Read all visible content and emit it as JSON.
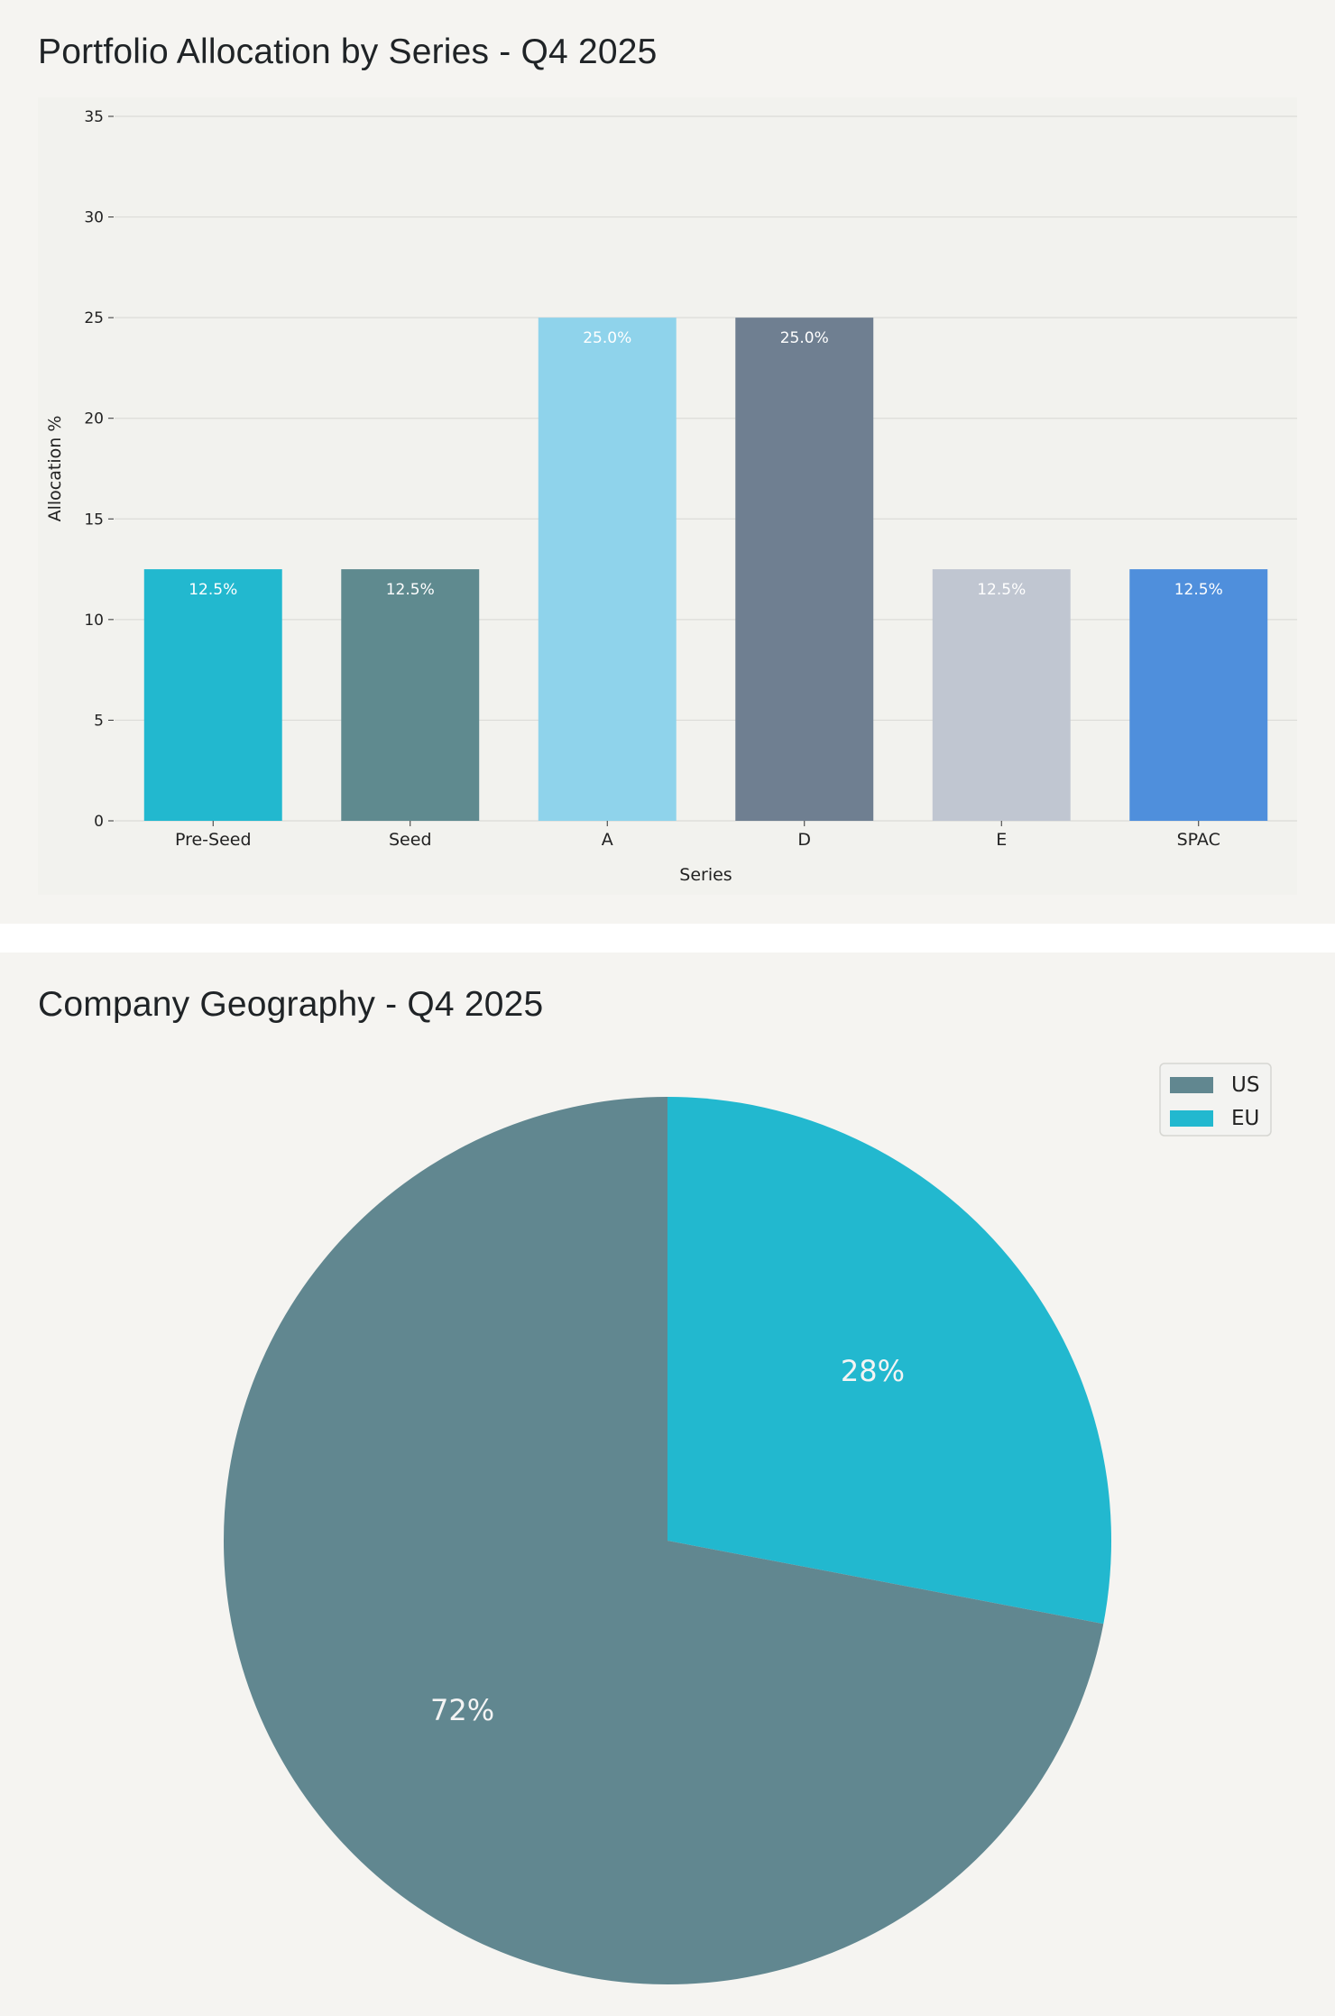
{
  "charts": {
    "bar": {
      "title": "Portfolio Allocation by Series - Q4 2025"
    },
    "pie": {
      "title": "Company Geography - Q4 2025"
    }
  },
  "chart_data": [
    {
      "type": "bar",
      "title": "Portfolio Allocation by Series - Q4 2025",
      "xlabel": "Series",
      "ylabel": "Allocation %",
      "categories": [
        "Pre-Seed",
        "Seed",
        "A",
        "D",
        "E",
        "SPAC"
      ],
      "values": [
        12.5,
        12.5,
        25.0,
        25.0,
        12.5,
        12.5
      ],
      "data_labels": [
        "12.5%",
        "12.5%",
        "25.0%",
        "25.0%",
        "12.5%",
        "12.5%"
      ],
      "colors": [
        "#22b8cf",
        "#5f8a8f",
        "#8fd3eb",
        "#6f7f91",
        "#c0c6d1",
        "#4f8fdc"
      ],
      "ylim": [
        0,
        35
      ],
      "yticks": [
        0,
        5,
        10,
        15,
        20,
        25,
        30,
        35
      ],
      "grid": true,
      "legend": "none"
    },
    {
      "type": "pie",
      "title": "Company Geography - Q4 2025",
      "slices": [
        {
          "label": "US",
          "value": 72,
          "display": "72%",
          "color": "#618790"
        },
        {
          "label": "EU",
          "value": 28,
          "display": "28%",
          "color": "#22b8cf"
        }
      ],
      "start": "top, clockwise from EU",
      "legend": "top-right"
    }
  ]
}
